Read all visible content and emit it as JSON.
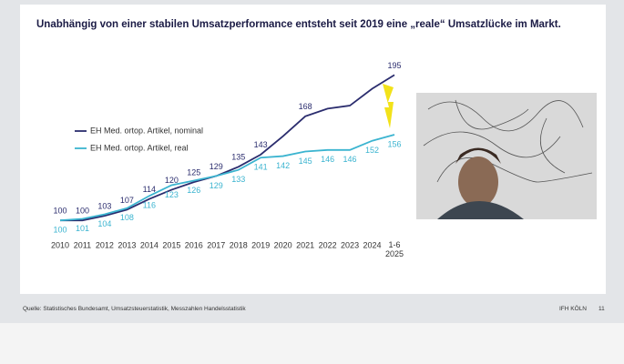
{
  "title": "Unabhängig von einer stabilen Umsatzperformance entsteht seit 2019 eine „reale“ Umsatzlücke im Markt.",
  "chart_data": {
    "type": "line",
    "categories": [
      "2010",
      "2011",
      "2012",
      "2013",
      "2014",
      "2015",
      "2016",
      "2017",
      "2018",
      "2019",
      "2020",
      "2021",
      "2022",
      "2023",
      "2024",
      "1-6 2025"
    ],
    "series": [
      {
        "name": "EH Med. ortop. Artikel, nominal",
        "color": "#2b2d6e",
        "values": [
          100,
          100,
          103,
          107,
          114,
          120,
          125,
          129,
          135,
          143,
          155,
          168,
          173,
          175,
          186,
          195
        ],
        "value_labels": [
          "100",
          "100",
          "103",
          "107",
          "114",
          "120",
          "125",
          "129",
          "135",
          "143",
          null,
          "168",
          null,
          null,
          null,
          "195"
        ]
      },
      {
        "name": "EH Med. ortop. Artikel, real",
        "color": "#3bb4d0",
        "values": [
          100,
          101,
          104,
          108,
          116,
          123,
          126,
          129,
          133,
          141,
          142,
          145,
          146,
          146,
          152,
          156
        ],
        "value_labels": [
          "100",
          "101",
          "104",
          "108",
          "116",
          "123",
          "126",
          "129",
          "133",
          "141",
          "142",
          "145",
          "146",
          "146",
          "152",
          "156"
        ]
      }
    ],
    "ylim": [
      90,
      200
    ]
  },
  "footer": {
    "source": "Quelle: Statistisches Bundesamt, Umsatzsteuerstatistik, Messzahlen Handelsstatistik",
    "brand": "IFH KÖLN",
    "page": "11"
  }
}
